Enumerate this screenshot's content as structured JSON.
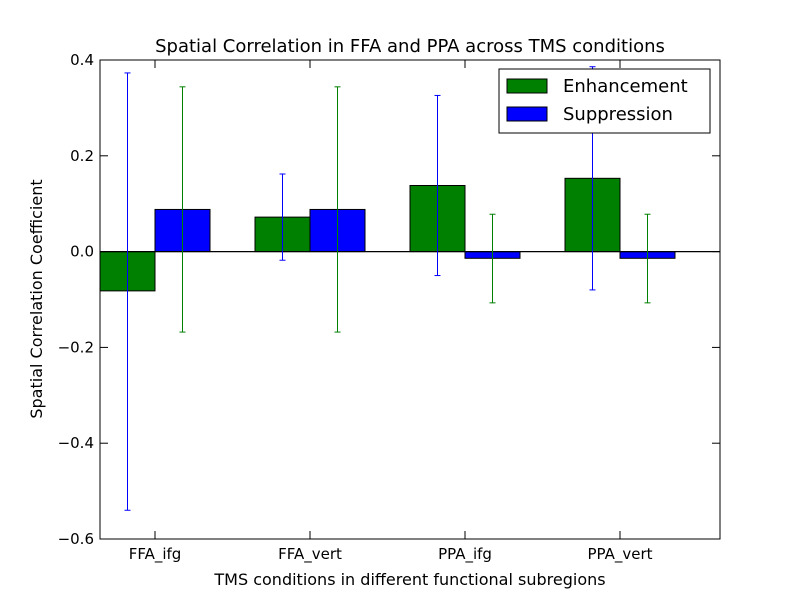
{
  "chart_data": {
    "type": "bar",
    "title": "Spatial Correlation in FFA and PPA across TMS conditions",
    "xlabel": "TMS conditions in different functional subregions",
    "ylabel": "Spatial Correlation Coefficient",
    "categories": [
      "FFA_ifg",
      "FFA_vert",
      "PPA_ifg",
      "PPA_vert"
    ],
    "ylim": [
      -0.6,
      0.4
    ],
    "yticks": [
      -0.6,
      -0.4,
      -0.2,
      0.0,
      0.2,
      0.4
    ],
    "ytick_labels": [
      "−0.6",
      "−0.4",
      "−0.2",
      "0.0",
      "0.2",
      "0.4"
    ],
    "grid": false,
    "legend_position": "top-right",
    "series": [
      {
        "name": "Enhancement",
        "color": "#008000",
        "values": [
          -0.082,
          0.072,
          0.138,
          0.153
        ],
        "error_low": [
          -0.54,
          -0.018,
          -0.05,
          -0.08
        ],
        "error_high": [
          0.373,
          0.162,
          0.326,
          0.386
        ]
      },
      {
        "name": "Suppression",
        "color": "#0000ff",
        "values": [
          0.088,
          0.088,
          -0.014,
          -0.014
        ],
        "error_low": [
          -0.168,
          -0.168,
          -0.107,
          -0.107
        ],
        "error_high": [
          0.344,
          0.344,
          0.078,
          0.078
        ]
      }
    ]
  }
}
